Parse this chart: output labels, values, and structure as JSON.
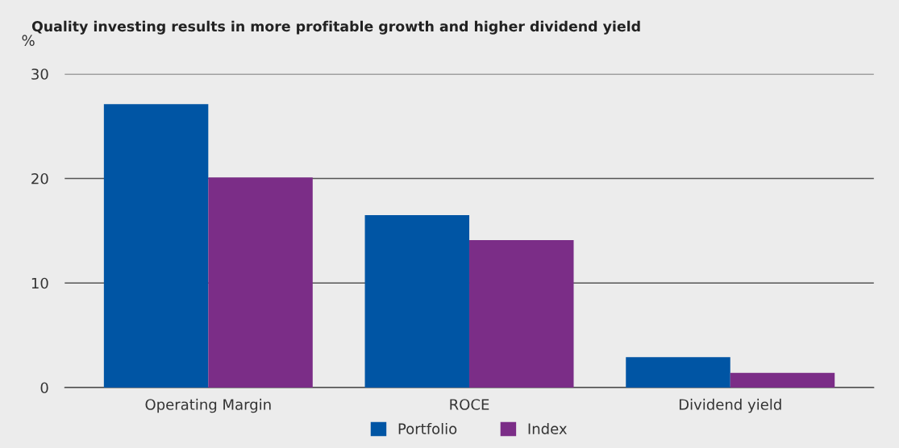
{
  "chart_data": {
    "type": "bar",
    "title": "Quality investing results in more profitable growth and higher dividend yield",
    "ylabel": "%",
    "categories": [
      "Operating Margin",
      "ROCE",
      "Dividend yield"
    ],
    "series": [
      {
        "name": "Portfolio",
        "color": "#0055a4",
        "values": [
          27.1,
          16.5,
          2.9
        ]
      },
      {
        "name": "Index",
        "color": "#7b2d87",
        "values": [
          20.1,
          14.1,
          1.4
        ]
      }
    ],
    "ylim": [
      0,
      30
    ],
    "yticks": [
      0,
      10,
      20,
      30
    ],
    "grid": "y",
    "legend": "bottom"
  }
}
